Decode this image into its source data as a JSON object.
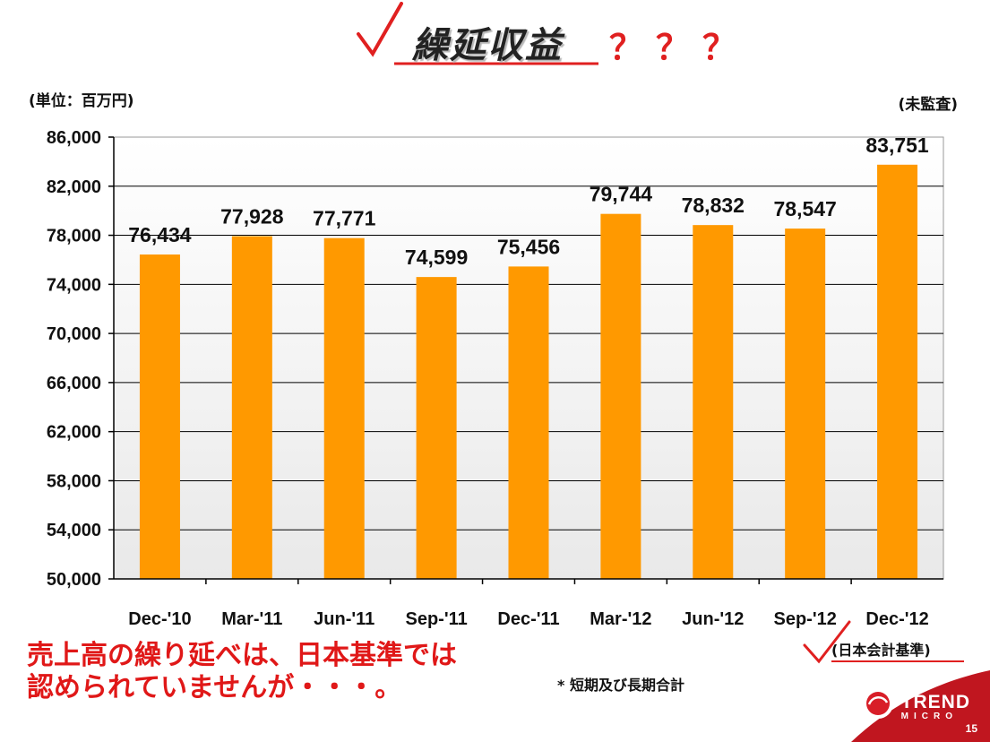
{
  "slide": {
    "title": "繰延収益",
    "title_suffix": "？？？",
    "unit_label": "(単位：百万円)",
    "audit_label": "(未監査)",
    "note_lines": [
      "売上高の繰り延べは、日本基準では",
      "認められていませんが・・・。"
    ],
    "footnote": "* 短期及び長期合計",
    "standard_label": "(日本会計基準)",
    "brand": {
      "name": "TREND",
      "sub": "MICRO"
    },
    "page_number": "15"
  },
  "colors": {
    "bar": "#ff9900",
    "note_text": "#e01818",
    "check_mark": "#e02020",
    "brand_panel": "#c0161f"
  },
  "chart_data": {
    "type": "bar",
    "categories": [
      "Dec-'10",
      "Mar-'11",
      "Jun-'11",
      "Sep-'11",
      "Dec-'11",
      "Mar-'12",
      "Jun-'12",
      "Sep-'12",
      "Dec-'12"
    ],
    "values": [
      76434,
      77928,
      77771,
      74599,
      75456,
      79744,
      78832,
      78547,
      83751
    ],
    "value_labels": [
      "76,434",
      "77,928",
      "77,771",
      "74,599",
      "75,456",
      "79,744",
      "78,832",
      "78,547",
      "83,751"
    ],
    "yticks": [
      "50,000",
      "54,000",
      "58,000",
      "62,000",
      "66,000",
      "70,000",
      "74,000",
      "78,000",
      "82,000",
      "86,000"
    ],
    "ylim": [
      50000,
      86000
    ],
    "grid": true,
    "legend": "none"
  }
}
